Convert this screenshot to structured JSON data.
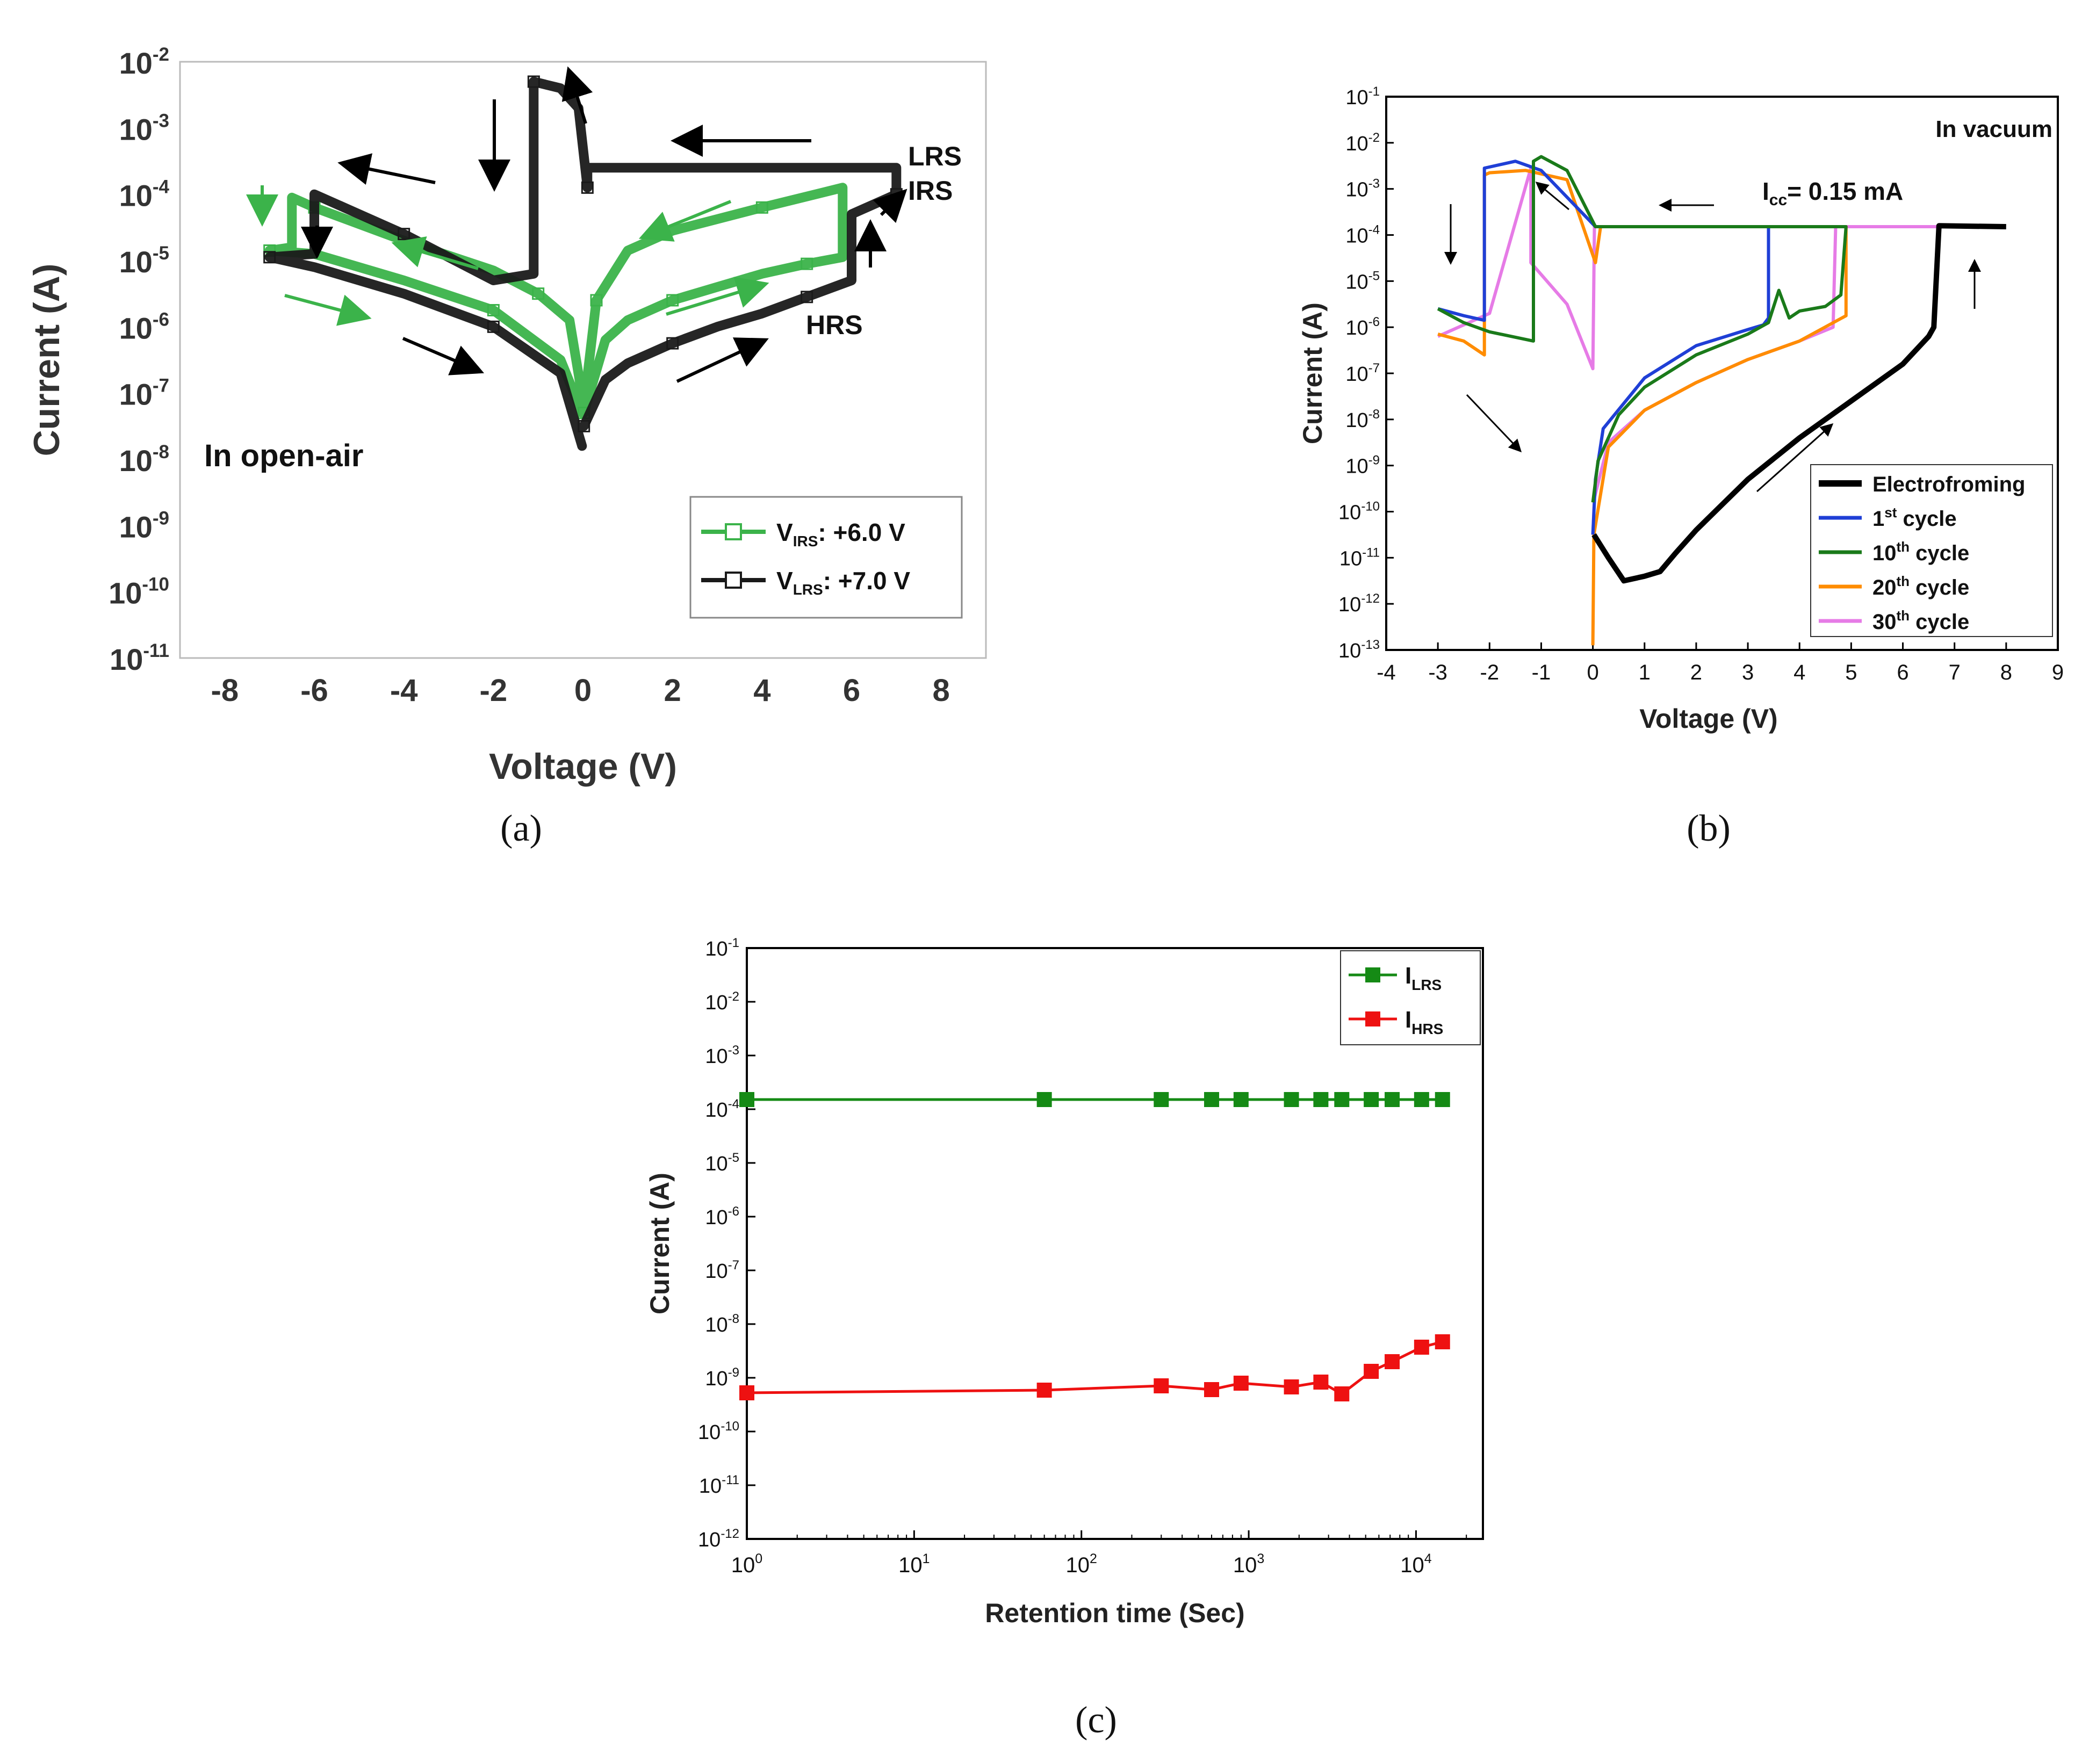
{
  "colors": {
    "a_green": "#3bb34a",
    "a_black": "#1a1a1a",
    "b_black": "#000000",
    "b_blue": "#1f3fd6",
    "b_green": "#1a7a1a",
    "b_orange": "#ff8c00",
    "b_pink": "#e67be6",
    "c_green": "#158a15",
    "c_red": "#ee1111"
  },
  "captions": {
    "a": "(a)",
    "b": "(b)",
    "c": "(c)"
  },
  "chart_data": [
    {
      "id": "a",
      "type": "line",
      "title": "",
      "annotation": "In open-air",
      "xlabel": "Voltage  (V)",
      "ylabel": "Current (A)",
      "xlim": [
        -9,
        9
      ],
      "ylim_log10": [
        -11,
        -2
      ],
      "xticks": [
        "-8",
        "-6",
        "-4",
        "-2",
        "0",
        "2",
        "4",
        "6",
        "8"
      ],
      "yticks": [
        {
          "base": "10",
          "exp": "-2"
        },
        {
          "base": "10",
          "exp": "-3"
        },
        {
          "base": "10",
          "exp": "-4"
        },
        {
          "base": "10",
          "exp": "-5"
        },
        {
          "base": "10",
          "exp": "-6"
        },
        {
          "base": "10",
          "exp": "-7"
        },
        {
          "base": "10",
          "exp": "-8"
        },
        {
          "base": "10",
          "exp": "-9"
        },
        {
          "base": "10",
          "exp": "-10"
        },
        {
          "base": "10",
          "exp": "-11"
        }
      ],
      "state_labels": [
        "LRS",
        "IRS",
        "HRS"
      ],
      "legend": [
        {
          "base": "V",
          "sub": "IRS",
          "rest": ": +6.0 V",
          "color": "#3bb34a"
        },
        {
          "base": "V",
          "sub": "LRS",
          "rest": ": +7.0 V",
          "color": "#1a1a1a"
        }
      ],
      "series": [
        {
          "name": "V_IRS: +6.0 V",
          "color": "#3bb34a",
          "x": [
            0.02,
            0.5,
            1,
            2,
            3,
            4,
            5,
            5.8,
            5.8,
            4,
            2,
            1,
            0.3,
            0.02,
            -0.3,
            -1,
            -2,
            -4,
            -6,
            -6.5,
            -6.5,
            -7,
            -6,
            -4,
            -2,
            -0.5,
            -0.02
          ],
          "log10": [
            -7.3,
            -6.2,
            -5.9,
            -5.6,
            -5.4,
            -5.2,
            -5.05,
            -4.95,
            -3.9,
            -4.2,
            -4.55,
            -4.85,
            -5.6,
            -7.2,
            -5.9,
            -5.5,
            -5.15,
            -4.7,
            -4.2,
            -4.05,
            -4.8,
            -4.85,
            -4.9,
            -5.3,
            -5.75,
            -6.5,
            -7.3
          ]
        },
        {
          "name": "V_LRS: +7.0 V",
          "color": "#1a1a1a",
          "x": [
            0.02,
            0.5,
            1,
            2,
            3,
            4,
            5,
            6,
            6,
            7,
            7,
            0.1,
            0.1,
            -0.1,
            -0.5,
            -1.1,
            -1.1,
            -2,
            -4,
            -6,
            -6,
            -7,
            -6,
            -4,
            -2,
            -0.5,
            -0.02
          ],
          "log10": [
            -7.5,
            -6.8,
            -6.55,
            -6.25,
            -6.0,
            -5.8,
            -5.55,
            -5.3,
            -4.3,
            -4.0,
            -3.6,
            -3.6,
            -3.9,
            -2.7,
            -2.4,
            -2.3,
            -5.2,
            -5.3,
            -4.6,
            -4.0,
            -4.9,
            -4.95,
            -5.1,
            -5.5,
            -6.0,
            -6.7,
            -7.8
          ]
        }
      ]
    },
    {
      "id": "b",
      "type": "line",
      "title": "",
      "annotation": "In vacuum",
      "compliance": {
        "base": "I",
        "sub": "cc",
        "rest": "= 0.15 mA"
      },
      "xlabel": "Voltage (V)",
      "ylabel": "Current (A)",
      "xlim": [
        -4,
        9
      ],
      "ylim_log10": [
        -13,
        -1
      ],
      "xticks": [
        "-4",
        "-3",
        "-2",
        "-1",
        "0",
        "1",
        "2",
        "3",
        "4",
        "5",
        "6",
        "7",
        "8",
        "9"
      ],
      "yticks": [
        {
          "base": "10",
          "exp": "-1"
        },
        {
          "base": "10",
          "exp": "-2"
        },
        {
          "base": "10",
          "exp": "-3"
        },
        {
          "base": "10",
          "exp": "-4"
        },
        {
          "base": "10",
          "exp": "-5"
        },
        {
          "base": "10",
          "exp": "-6"
        },
        {
          "base": "10",
          "exp": "-7"
        },
        {
          "base": "10",
          "exp": "-8"
        },
        {
          "base": "10",
          "exp": "-9"
        },
        {
          "base": "10",
          "exp": "-10"
        },
        {
          "base": "10",
          "exp": "-11"
        },
        {
          "base": "10",
          "exp": "-12"
        },
        {
          "base": "10",
          "exp": "-13"
        }
      ],
      "legend": [
        {
          "label": "Electrofroming",
          "sup": "",
          "rest": "",
          "color": "#000000"
        },
        {
          "label": "1",
          "sup": "st",
          "rest": " cycle",
          "color": "#1f3fd6"
        },
        {
          "label": "10",
          "sup": "th",
          "rest": " cycle",
          "color": "#1a7a1a"
        },
        {
          "label": "20",
          "sup": "th",
          "rest": " cycle",
          "color": "#ff8c00"
        },
        {
          "label": "30",
          "sup": "th",
          "rest": " cycle",
          "color": "#e67be6"
        }
      ],
      "series": [
        {
          "name": "Electrofroming",
          "color": "#000000",
          "x": [
            0.02,
            0.3,
            0.6,
            1,
            1.3,
            1.6,
            2,
            3,
            4,
            5,
            6,
            6.5,
            6.6,
            6.7,
            8
          ],
          "log10": [
            -10.5,
            -11.0,
            -11.5,
            -11.4,
            -11.3,
            -10.9,
            -10.4,
            -9.3,
            -8.4,
            -7.6,
            -6.8,
            -6.2,
            -6.0,
            -3.8,
            -3.82
          ]
        },
        {
          "name": "1st cycle",
          "color": "#1f3fd6",
          "x": [
            0,
            0.05,
            0.2,
            1,
            2,
            3,
            3.3,
            3.4,
            3.4,
            0.1,
            0.05,
            -1,
            -1.5,
            -2.1,
            -2.1,
            -2.5,
            -3
          ],
          "log10": [
            -10.5,
            -9.3,
            -8.2,
            -7.1,
            -6.4,
            -6.05,
            -5.95,
            -5.8,
            -3.82,
            -3.82,
            -3.82,
            -2.6,
            -2.4,
            -2.55,
            -5.85,
            -5.75,
            -5.6
          ]
        },
        {
          "name": "10th cycle",
          "color": "#1a7a1a",
          "x": [
            0,
            0.1,
            0.5,
            1,
            2,
            3,
            3.4,
            3.6,
            3.8,
            4,
            4.5,
            4.8,
            4.9,
            4.9,
            0.1,
            0.05,
            -0.5,
            -1.0,
            -1.15,
            -1.15,
            -2,
            -2.5,
            -3
          ],
          "log10": [
            -9.8,
            -8.9,
            -7.9,
            -7.3,
            -6.6,
            -6.15,
            -5.9,
            -5.2,
            -5.8,
            -5.65,
            -5.55,
            -5.3,
            -3.82,
            -3.82,
            -3.82,
            -3.82,
            -2.6,
            -2.3,
            -2.4,
            -6.3,
            -6.1,
            -5.9,
            -5.6
          ]
        },
        {
          "name": "20th cycle",
          "color": "#ff8c00",
          "x": [
            0,
            0.02,
            0.3,
            1,
            2,
            3,
            4,
            4.9,
            4.9,
            0.15,
            0.05,
            -0.5,
            -1.3,
            -2,
            -2.1,
            -2.1,
            -2.5,
            -3
          ],
          "log10": [
            -12.9,
            -10.5,
            -8.6,
            -7.8,
            -7.2,
            -6.7,
            -6.3,
            -5.75,
            -3.82,
            -3.82,
            -4.6,
            -2.8,
            -2.6,
            -2.65,
            -2.7,
            -6.6,
            -6.3,
            -6.15
          ]
        },
        {
          "name": "30th cycle",
          "color": "#e67be6",
          "x": [
            0,
            0.03,
            0.3,
            1,
            2,
            3,
            4,
            4.65,
            4.7,
            7.1,
            0.1,
            0.03,
            0.0,
            -0.5,
            -1.2,
            -1.2,
            -2,
            -3
          ],
          "log10": [
            -10.5,
            -9.7,
            -8.5,
            -7.8,
            -7.2,
            -6.7,
            -6.3,
            -6.0,
            -3.82,
            -3.82,
            -3.82,
            -3.82,
            -6.9,
            -5.5,
            -4.6,
            -2.55,
            -5.7,
            -6.2
          ]
        }
      ]
    },
    {
      "id": "c",
      "type": "scatter",
      "title": "",
      "xlabel": "Retention time (Sec)",
      "ylabel": "Current (A)",
      "xlim_log10": [
        0,
        4.4
      ],
      "ylim_log10": [
        -12,
        -1
      ],
      "xticks": [
        {
          "base": "10",
          "exp": "0"
        },
        {
          "base": "10",
          "exp": "1"
        },
        {
          "base": "10",
          "exp": "2"
        },
        {
          "base": "10",
          "exp": "3"
        },
        {
          "base": "10",
          "exp": "4"
        }
      ],
      "yticks": [
        {
          "base": "10",
          "exp": "-1"
        },
        {
          "base": "10",
          "exp": "-2"
        },
        {
          "base": "10",
          "exp": "-3"
        },
        {
          "base": "10",
          "exp": "-4"
        },
        {
          "base": "10",
          "exp": "-5"
        },
        {
          "base": "10",
          "exp": "-6"
        },
        {
          "base": "10",
          "exp": "-7"
        },
        {
          "base": "10",
          "exp": "-8"
        },
        {
          "base": "10",
          "exp": "-9"
        },
        {
          "base": "10",
          "exp": "-10"
        },
        {
          "base": "10",
          "exp": "-11"
        },
        {
          "base": "10",
          "exp": "-12"
        }
      ],
      "legend": [
        {
          "base": "I",
          "sub": "LRS",
          "color": "#158a15"
        },
        {
          "base": "I",
          "sub": "HRS",
          "color": "#ee1111"
        }
      ],
      "series": [
        {
          "name": "I_LRS",
          "color": "#158a15",
          "x": [
            1,
            60,
            300,
            600,
            900,
            1800,
            2700,
            3600,
            5400,
            7200,
            10800,
            14400
          ],
          "log10": [
            -3.82,
            -3.82,
            -3.82,
            -3.82,
            -3.82,
            -3.82,
            -3.82,
            -3.82,
            -3.82,
            -3.82,
            -3.82,
            -3.82
          ]
        },
        {
          "name": "I_HRS",
          "color": "#ee1111",
          "x": [
            1,
            60,
            300,
            600,
            900,
            1800,
            2700,
            3600,
            5400,
            7200,
            10800,
            14400
          ],
          "log10": [
            -9.28,
            -9.23,
            -9.15,
            -9.22,
            -9.1,
            -9.17,
            -9.08,
            -9.3,
            -8.88,
            -8.7,
            -8.43,
            -8.33
          ]
        }
      ]
    }
  ]
}
